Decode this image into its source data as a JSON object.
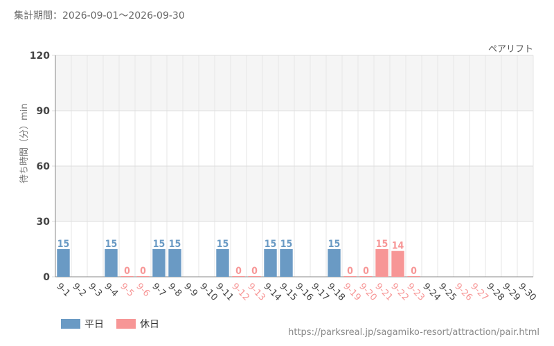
{
  "header": {
    "period": "集計期間：2026-09-01～2026-09-30"
  },
  "legend": {
    "weekday_label": "平日",
    "holiday_label": "休日"
  },
  "footer": {
    "source": "https://parksreal.jp/sagamiko-resort/attraction/pair.html"
  },
  "colors": {
    "weekday": "#6a9ac4",
    "holiday": "#f79696"
  },
  "chart_data": {
    "type": "bar",
    "subtitle": "ペアリフト",
    "ylabel": "待ち時間（分）min",
    "xlabel": "",
    "ylim": [
      0,
      120
    ],
    "yticks": [
      0,
      30,
      60,
      90,
      120
    ],
    "grid": true,
    "legend_position": "bottom-left",
    "categories": [
      "9-1",
      "9-2",
      "9-3",
      "9-4",
      "9-5",
      "9-6",
      "9-7",
      "9-8",
      "9-9",
      "9-10",
      "9-11",
      "9-12",
      "9-13",
      "9-14",
      "9-15",
      "9-16",
      "9-17",
      "9-18",
      "9-19",
      "9-20",
      "9-21",
      "9-22",
      "9-23",
      "9-24",
      "9-25",
      "9-26",
      "9-27",
      "9-28",
      "9-29",
      "9-30"
    ],
    "day_types": [
      "weekday",
      "weekday",
      "weekday",
      "weekday",
      "holiday",
      "holiday",
      "weekday",
      "weekday",
      "weekday",
      "weekday",
      "weekday",
      "holiday",
      "holiday",
      "weekday",
      "weekday",
      "weekday",
      "weekday",
      "weekday",
      "holiday",
      "holiday",
      "holiday",
      "holiday",
      "holiday",
      "weekday",
      "weekday",
      "holiday",
      "holiday",
      "weekday",
      "weekday",
      "weekday"
    ],
    "values": [
      15,
      null,
      null,
      15,
      0,
      0,
      15,
      15,
      null,
      null,
      15,
      0,
      0,
      15,
      15,
      null,
      null,
      15,
      0,
      0,
      15,
      14,
      0,
      null,
      null,
      null,
      null,
      null,
      null,
      null
    ],
    "series": [
      {
        "name": "平日",
        "color": "#6a9ac4"
      },
      {
        "name": "休日",
        "color": "#f79696"
      }
    ]
  }
}
